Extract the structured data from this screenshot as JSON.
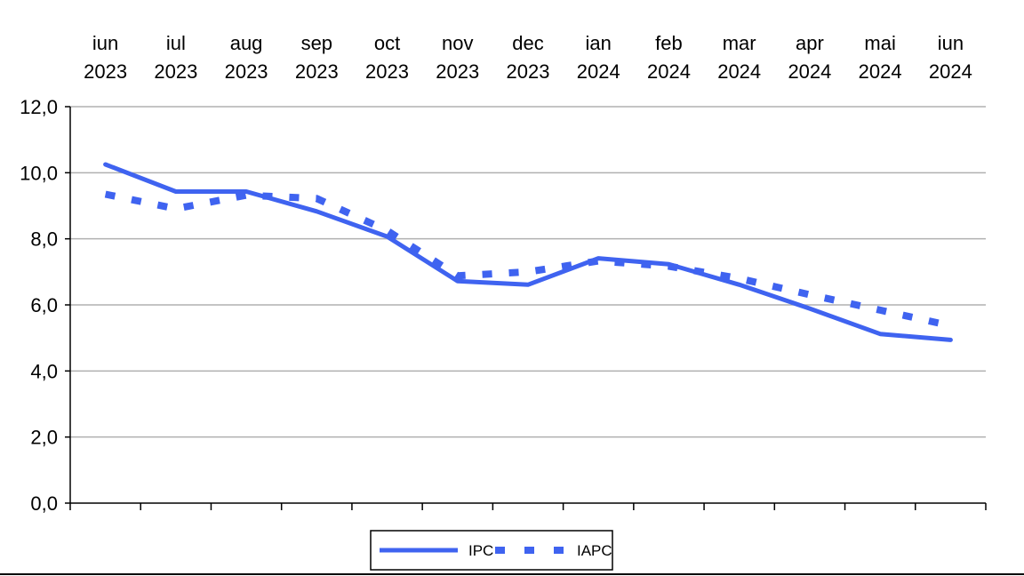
{
  "chart_data": {
    "type": "line",
    "categories": [
      [
        "iun",
        "2023"
      ],
      [
        "iul",
        "2023"
      ],
      [
        "aug",
        "2023"
      ],
      [
        "sep",
        "2023"
      ],
      [
        "oct",
        "2023"
      ],
      [
        "nov",
        "2023"
      ],
      [
        "dec",
        "2023"
      ],
      [
        "ian",
        "2024"
      ],
      [
        "feb",
        "2024"
      ],
      [
        "mar",
        "2024"
      ],
      [
        "apr",
        "2024"
      ],
      [
        "mai",
        "2024"
      ],
      [
        "iun",
        "2024"
      ]
    ],
    "series": [
      {
        "name": "IPC",
        "style": "solid",
        "color": "#3f63f0",
        "values": [
          10.25,
          9.43,
          9.43,
          8.83,
          8.07,
          6.72,
          6.61,
          7.41,
          7.23,
          6.61,
          5.89,
          5.12,
          4.94
        ]
      },
      {
        "name": "IAPC",
        "style": "dotted",
        "color": "#3f63f0",
        "values": [
          9.35,
          8.91,
          9.32,
          9.22,
          8.25,
          6.88,
          7.0,
          7.33,
          7.17,
          6.8,
          6.31,
          5.84,
          5.37
        ]
      }
    ],
    "ylim": [
      0,
      12
    ],
    "yticks": [
      "0,0",
      "2,0",
      "4,0",
      "6,0",
      "8,0",
      "10,0",
      "12,0"
    ],
    "ytick_values": [
      0,
      2,
      4,
      6,
      8,
      10,
      12
    ],
    "x_axis_position": "top",
    "grid": true,
    "legend_position": "bottom-center",
    "title": "",
    "xlabel": "",
    "ylabel": ""
  }
}
